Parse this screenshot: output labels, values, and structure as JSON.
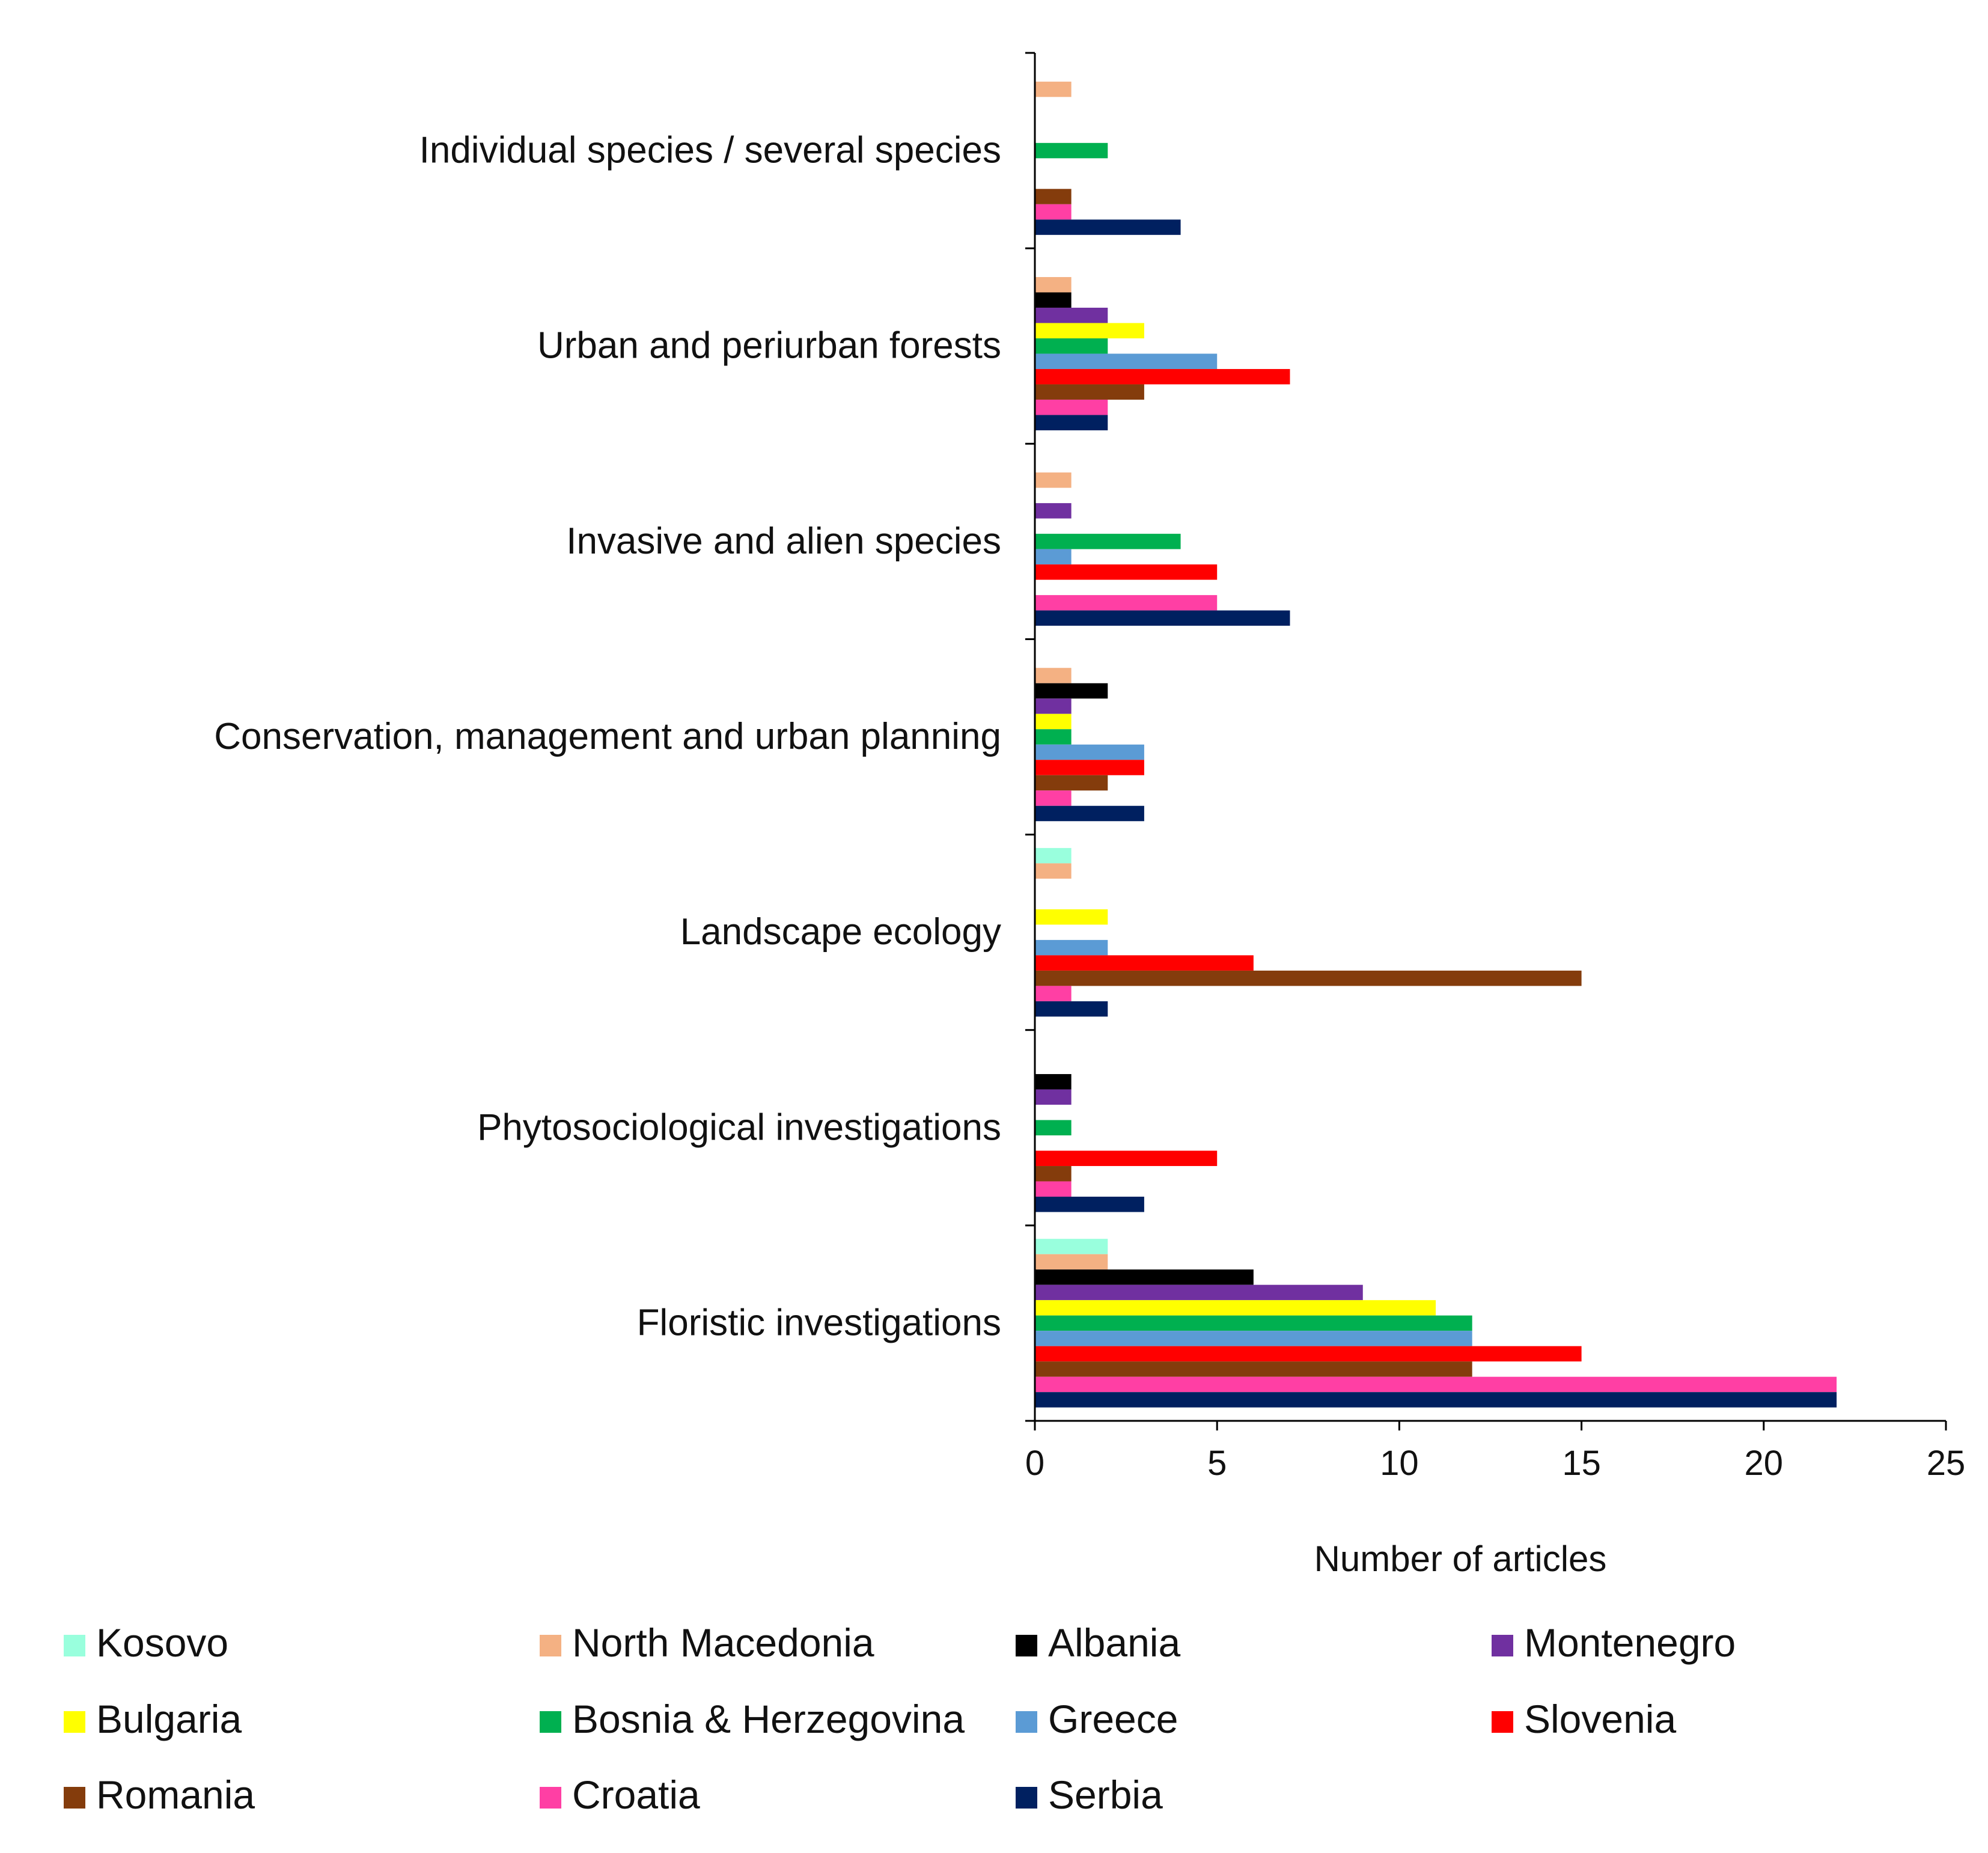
{
  "chart_data": {
    "type": "bar",
    "orientation": "horizontal",
    "title": "",
    "xlabel": "Number of articles",
    "ylabel": "",
    "xlim": [
      0,
      25
    ],
    "xticks": [
      0,
      5,
      10,
      15,
      20,
      25
    ],
    "grid": false,
    "legend_position": "bottom",
    "categories": [
      "Individual species / several species",
      "Urban and periurban forests",
      "Invasive and alien species",
      "Conservation, management and urban planning",
      "Landscape ecology",
      "Phytosociological investigations",
      "Floristic investigations"
    ],
    "series": [
      {
        "name": "Kosovo",
        "color": "#99FFDD",
        "values": [
          0,
          0,
          0,
          0,
          1,
          0,
          2
        ]
      },
      {
        "name": "North Macedonia",
        "color": "#F4B183",
        "values": [
          1,
          1,
          1,
          1,
          1,
          0,
          2
        ]
      },
      {
        "name": "Albania",
        "color": "#000000",
        "values": [
          0,
          1,
          0,
          2,
          0,
          1,
          6
        ]
      },
      {
        "name": "Montenegro",
        "color": "#7030A0",
        "values": [
          0,
          2,
          1,
          1,
          0,
          1,
          9
        ]
      },
      {
        "name": "Bulgaria",
        "color": "#FFFF00",
        "values": [
          0,
          3,
          0,
          1,
          2,
          0,
          11
        ]
      },
      {
        "name": "Bosnia & Herzegovina",
        "color": "#00B050",
        "values": [
          2,
          2,
          4,
          1,
          0,
          1,
          12
        ]
      },
      {
        "name": "Greece",
        "color": "#5B9BD5",
        "values": [
          0,
          5,
          1,
          3,
          2,
          0,
          12
        ]
      },
      {
        "name": "Slovenia",
        "color": "#FF0000",
        "values": [
          0,
          7,
          5,
          3,
          6,
          5,
          15
        ]
      },
      {
        "name": "Romania",
        "color": "#843C0C",
        "values": [
          1,
          3,
          0,
          2,
          15,
          1,
          12
        ]
      },
      {
        "name": "Croatia",
        "color": "#FF3FA4",
        "values": [
          1,
          2,
          5,
          1,
          1,
          1,
          22
        ]
      },
      {
        "name": "Serbia",
        "color": "#002060",
        "values": [
          4,
          2,
          7,
          3,
          2,
          3,
          22
        ]
      }
    ],
    "legend_order": [
      "Kosovo",
      "North Macedonia",
      "Albania",
      "Montenegro",
      "Bulgaria",
      "Bosnia & Herzegovina",
      "Greece",
      "Slovenia",
      "Romania",
      "Croatia",
      "Serbia"
    ]
  }
}
